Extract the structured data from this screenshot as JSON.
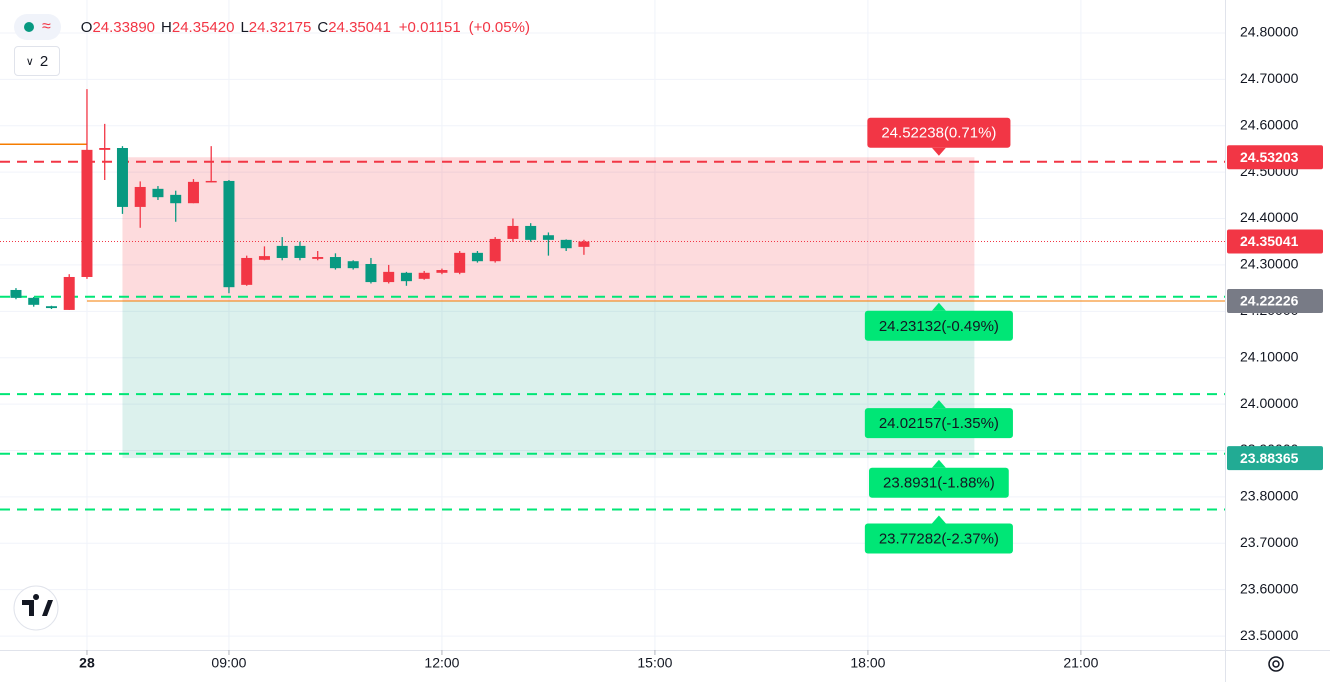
{
  "chart_data": {
    "type": "candlestick",
    "legend_values": [
      {
        "key": "O",
        "value": "24.33890"
      },
      {
        "key": "H",
        "value": "24.35420"
      },
      {
        "key": "L",
        "value": "24.32175"
      },
      {
        "key": "C",
        "value": "24.35041"
      }
    ],
    "change": "+0.01151",
    "change_pct": "(+0.05%)",
    "indicator_count": 2,
    "up_color": "#f23645",
    "down_color": "#089981",
    "x": [
      6,
      6.25,
      6.5,
      6.75,
      7,
      7.25,
      7.5,
      7.75,
      8,
      8.25,
      8.5,
      8.75,
      9,
      9.25,
      9.5,
      9.75,
      10,
      10.25,
      10.5,
      10.75,
      11,
      11.25,
      11.5,
      11.75,
      12,
      12.25,
      12.5,
      12.75,
      13,
      13.25,
      13.5,
      13.75,
      14
    ],
    "open": [
      24.246,
      24.229,
      24.211,
      24.203,
      24.274,
      24.548,
      24.552,
      24.425,
      24.464,
      24.451,
      24.433,
      24.479,
      24.481,
      24.257,
      24.311,
      24.341,
      24.341,
      24.313,
      24.317,
      24.308,
      24.302,
      24.263,
      24.283,
      24.27,
      24.283,
      24.283,
      24.326,
      24.308,
      24.356,
      24.384,
      24.364,
      24.354,
      24.3389
    ],
    "high": [
      24.25,
      24.231,
      24.212,
      24.28,
      24.679,
      24.604,
      24.556,
      24.48,
      24.47,
      24.46,
      24.485,
      24.556,
      24.483,
      24.32,
      24.34,
      24.36,
      24.35,
      24.33,
      24.325,
      24.31,
      24.315,
      24.3,
      24.285,
      24.287,
      24.292,
      24.33,
      24.33,
      24.36,
      24.4,
      24.39,
      24.37,
      24.355,
      24.3542
    ],
    "low": [
      24.226,
      24.21,
      24.205,
      24.203,
      24.27,
      24.483,
      24.41,
      24.38,
      24.44,
      24.393,
      24.433,
      24.478,
      24.239,
      24.255,
      24.31,
      24.31,
      24.31,
      24.31,
      24.29,
      24.29,
      24.26,
      24.26,
      24.255,
      24.268,
      24.28,
      24.28,
      24.305,
      24.305,
      24.35,
      24.35,
      24.32,
      24.33,
      24.32175
    ],
    "close": [
      24.229,
      24.214,
      24.207,
      24.274,
      24.548,
      24.552,
      24.425,
      24.468,
      24.446,
      24.433,
      24.479,
      24.481,
      24.252,
      24.315,
      24.319,
      24.315,
      24.315,
      24.317,
      24.293,
      24.293,
      24.263,
      24.285,
      24.265,
      24.283,
      24.289,
      24.326,
      24.308,
      24.356,
      24.384,
      24.354,
      24.354,
      24.336,
      24.35041
    ],
    "xlim": [
      5.775,
      23.03
    ],
    "xticks": [
      {
        "value": 7,
        "label": "28"
      },
      {
        "value": 9,
        "label": "09:00"
      },
      {
        "value": 12,
        "label": "12:00"
      },
      {
        "value": 15,
        "label": "15:00"
      },
      {
        "value": 18,
        "label": "18:00"
      },
      {
        "value": 21,
        "label": "21:00"
      }
    ],
    "ylim": [
      23.47,
      24.871
    ],
    "yticks": [
      {
        "value": 24.8,
        "label": "24.80000"
      },
      {
        "value": 24.7,
        "label": "24.70000"
      },
      {
        "value": 24.6,
        "label": "24.60000"
      },
      {
        "value": 24.5,
        "label": "24.50000"
      },
      {
        "value": 24.4,
        "label": "24.40000"
      },
      {
        "value": 24.3,
        "label": "24.30000"
      },
      {
        "value": 24.2,
        "label": "24.20000"
      },
      {
        "value": 24.1,
        "label": "24.10000"
      },
      {
        "value": 24.0,
        "label": "24.00000"
      },
      {
        "value": 23.9,
        "label": "23.90000"
      },
      {
        "value": 23.8,
        "label": "23.80000"
      },
      {
        "value": 23.7,
        "label": "23.70000"
      },
      {
        "value": 23.6,
        "label": "23.60000"
      },
      {
        "value": 23.5,
        "label": "23.50000"
      }
    ],
    "grid": true,
    "position": {
      "stop": 24.53203,
      "entry": 24.22226,
      "target": 23.88365,
      "x_start": 7.5,
      "x_end": 19.5,
      "stop_color": "#f23645",
      "target_color": "#089981"
    },
    "session_line": {
      "value": 24.56,
      "x_end": 7,
      "color": "#f57c00"
    },
    "orders": [
      {
        "price": 24.52238,
        "label": "24.52238(0.71%)",
        "color": "#f23645"
      },
      {
        "price": 24.23132,
        "label": "24.23132(-0.49%)",
        "color": "#00e676"
      },
      {
        "price": 24.02157,
        "label": "24.02157(-1.35%)",
        "color": "#00e676"
      },
      {
        "price": 23.8931,
        "label": "23.8931(-1.88%)",
        "color": "#00e676"
      },
      {
        "price": 23.77282,
        "label": "23.77282(-2.37%)",
        "color": "#00e676"
      }
    ],
    "order_label_x": 19,
    "price_labels": [
      {
        "value": 24.53203,
        "color": "#f23645"
      },
      {
        "value": 24.35041,
        "color": "#f23645"
      },
      {
        "value": 24.22226,
        "color": "#787b86"
      },
      {
        "value": 23.88365,
        "color": "#22ab94"
      }
    ]
  }
}
